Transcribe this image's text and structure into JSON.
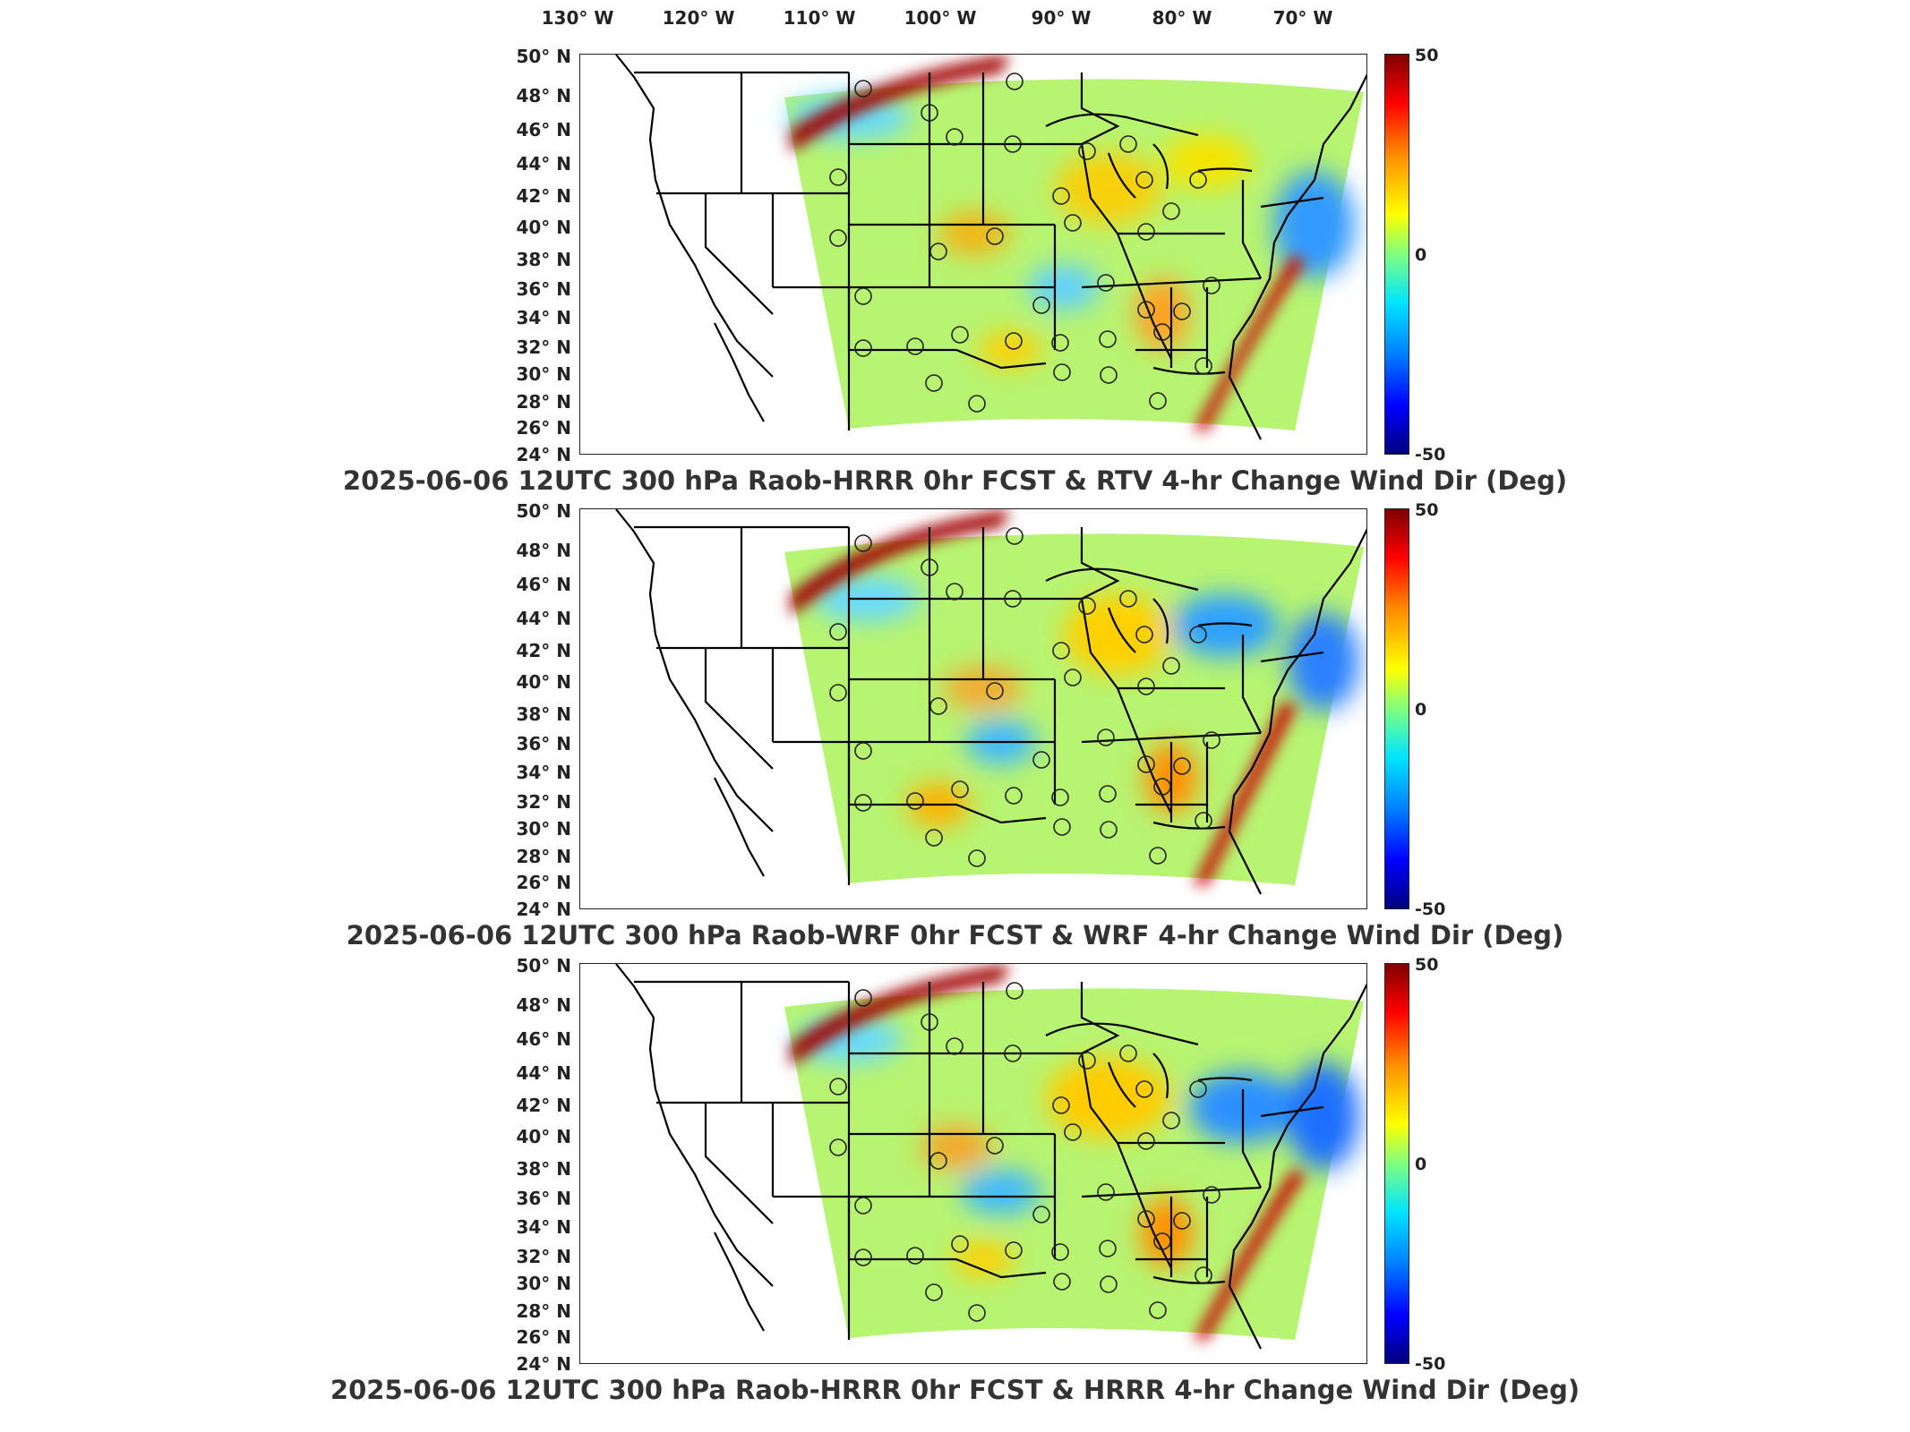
{
  "longitude_labels": [
    "130° W",
    "120° W",
    "110° W",
    "100° W",
    "90° W",
    "80° W",
    "70° W"
  ],
  "latitude_labels": [
    "50° N",
    "48° N",
    "46° N",
    "44° N",
    "42° N",
    "40° N",
    "38° N",
    "36° N",
    "34° N",
    "32° N",
    "30° N",
    "28° N",
    "26° N",
    "24° N"
  ],
  "colorbar": {
    "max": "50",
    "mid": "0",
    "min": "-50",
    "colors": [
      "#7f0000",
      "#ff0000",
      "#ffff00",
      "#7fff7f",
      "#00e5ff",
      "#0000ff",
      "#00007f"
    ]
  },
  "panels": [
    {
      "title": "2025-06-06 12UTC 300 hPa Raob-HRRR 0hr FCST & RTV 4-hr Change Wind Dir (Deg)"
    },
    {
      "title": "2025-06-06 12UTC 300 hPa Raob-WRF 0hr FCST & WRF 4-hr Change Wind Dir (Deg)"
    },
    {
      "title": "2025-06-06 12UTC 300 hPa Raob-HRRR 0hr FCST & HRRR 4-hr Change Wind Dir (Deg)"
    }
  ]
}
